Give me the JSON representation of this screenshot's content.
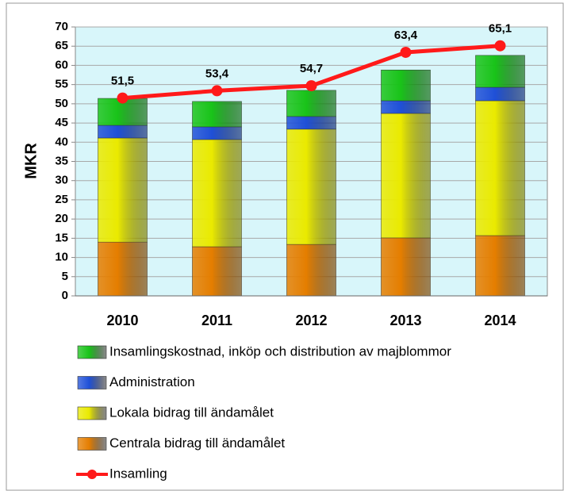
{
  "chart_data": {
    "type": "bar",
    "stacked": true,
    "categories": [
      "2010",
      "2011",
      "2012",
      "2013",
      "2014"
    ],
    "ylabel": "MKR",
    "ylim": [
      0,
      70
    ],
    "yticks": [
      0,
      5,
      10,
      15,
      20,
      25,
      30,
      35,
      40,
      45,
      50,
      55,
      60,
      65,
      70
    ],
    "grid": true,
    "series": [
      {
        "name": "Centrala bidrag till ändamålet",
        "type": "bar",
        "color": "#e57e00",
        "values": [
          14.0,
          12.8,
          13.4,
          15.1,
          15.7
        ]
      },
      {
        "name": "Lokala bidrag till ändamålet",
        "type": "bar",
        "color": "#eaea00",
        "values": [
          27.1,
          27.9,
          30.0,
          32.4,
          35.1
        ]
      },
      {
        "name": "Administration",
        "type": "bar",
        "color": "#1f50d8",
        "values": [
          3.3,
          3.3,
          3.3,
          3.3,
          3.5
        ]
      },
      {
        "name": "Insamlingskostnad, inköp och distribution av majblommor",
        "type": "bar",
        "color": "#19c419",
        "values": [
          7.0,
          6.6,
          6.8,
          8.0,
          8.3
        ]
      },
      {
        "name": "Insamling",
        "type": "line",
        "color": "#ff1a1a",
        "values": [
          51.5,
          53.4,
          54.7,
          63.4,
          65.1
        ],
        "value_labels": [
          "51,5",
          "53,4",
          "54,7",
          "63,4",
          "65,1"
        ]
      }
    ]
  }
}
